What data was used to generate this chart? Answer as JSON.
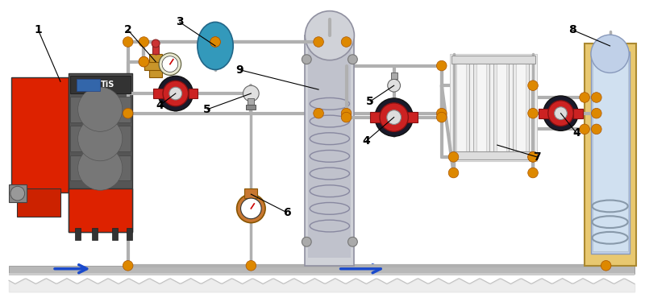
{
  "bg_color": "#ffffff",
  "fig_w": 8.0,
  "fig_h": 3.7,
  "pipe_gray": "#b0b0b0",
  "pipe_orange": "#cc6600",
  "pipe_lw": 3.0,
  "joint_color": "#dd8800",
  "joint_r": 0.008,
  "blue": "#1a4acc",
  "red": "#cc1111",
  "ground_fc": "#aaaaaa",
  "ground_ec": "#888888"
}
